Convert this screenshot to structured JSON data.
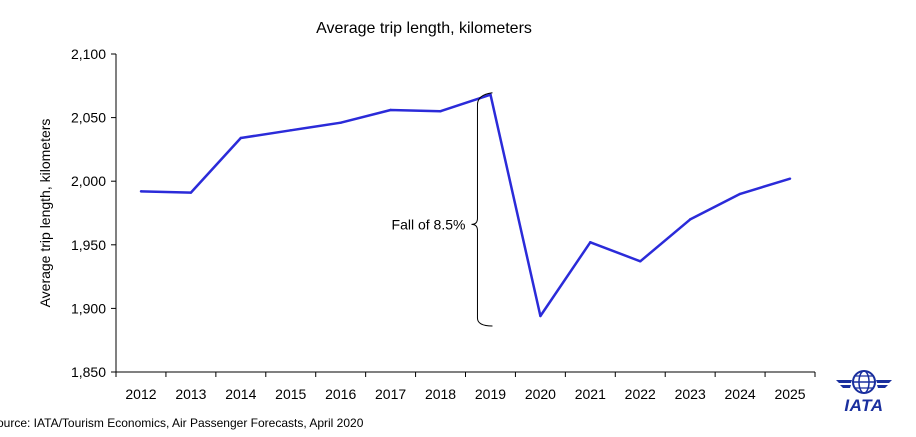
{
  "chart_data": {
    "type": "line",
    "title": "Average trip length, kilometers",
    "ylabel": "Average trip length, kilometers",
    "xlabel": "",
    "categories": [
      "2012",
      "2013",
      "2014",
      "2015",
      "2016",
      "2017",
      "2018",
      "2019",
      "2020",
      "2021",
      "2022",
      "2023",
      "2024",
      "2025"
    ],
    "series": [
      {
        "values": [
          1992,
          1991,
          2034,
          2040,
          2046,
          2056,
          2055,
          2068,
          1894,
          1952,
          1937,
          1970,
          1990,
          2002
        ]
      }
    ],
    "ylim": [
      1850,
      2100
    ],
    "yticks": [
      1850,
      1900,
      1950,
      2000,
      2050,
      2100
    ],
    "ytick_labels": [
      "1,850",
      "1,900",
      "1,950",
      "2,000",
      "2,050",
      "2,100"
    ],
    "grid": false,
    "line_color": "#2b2bd9",
    "annotation": {
      "text": "Fall of 8.5%",
      "from": 2068,
      "to": 1894
    }
  },
  "source": "ource: IATA/Tourism Economics, Air Passenger Forecasts, April 2020",
  "logo": {
    "text": "IATA",
    "color": "#1a2f9e"
  }
}
